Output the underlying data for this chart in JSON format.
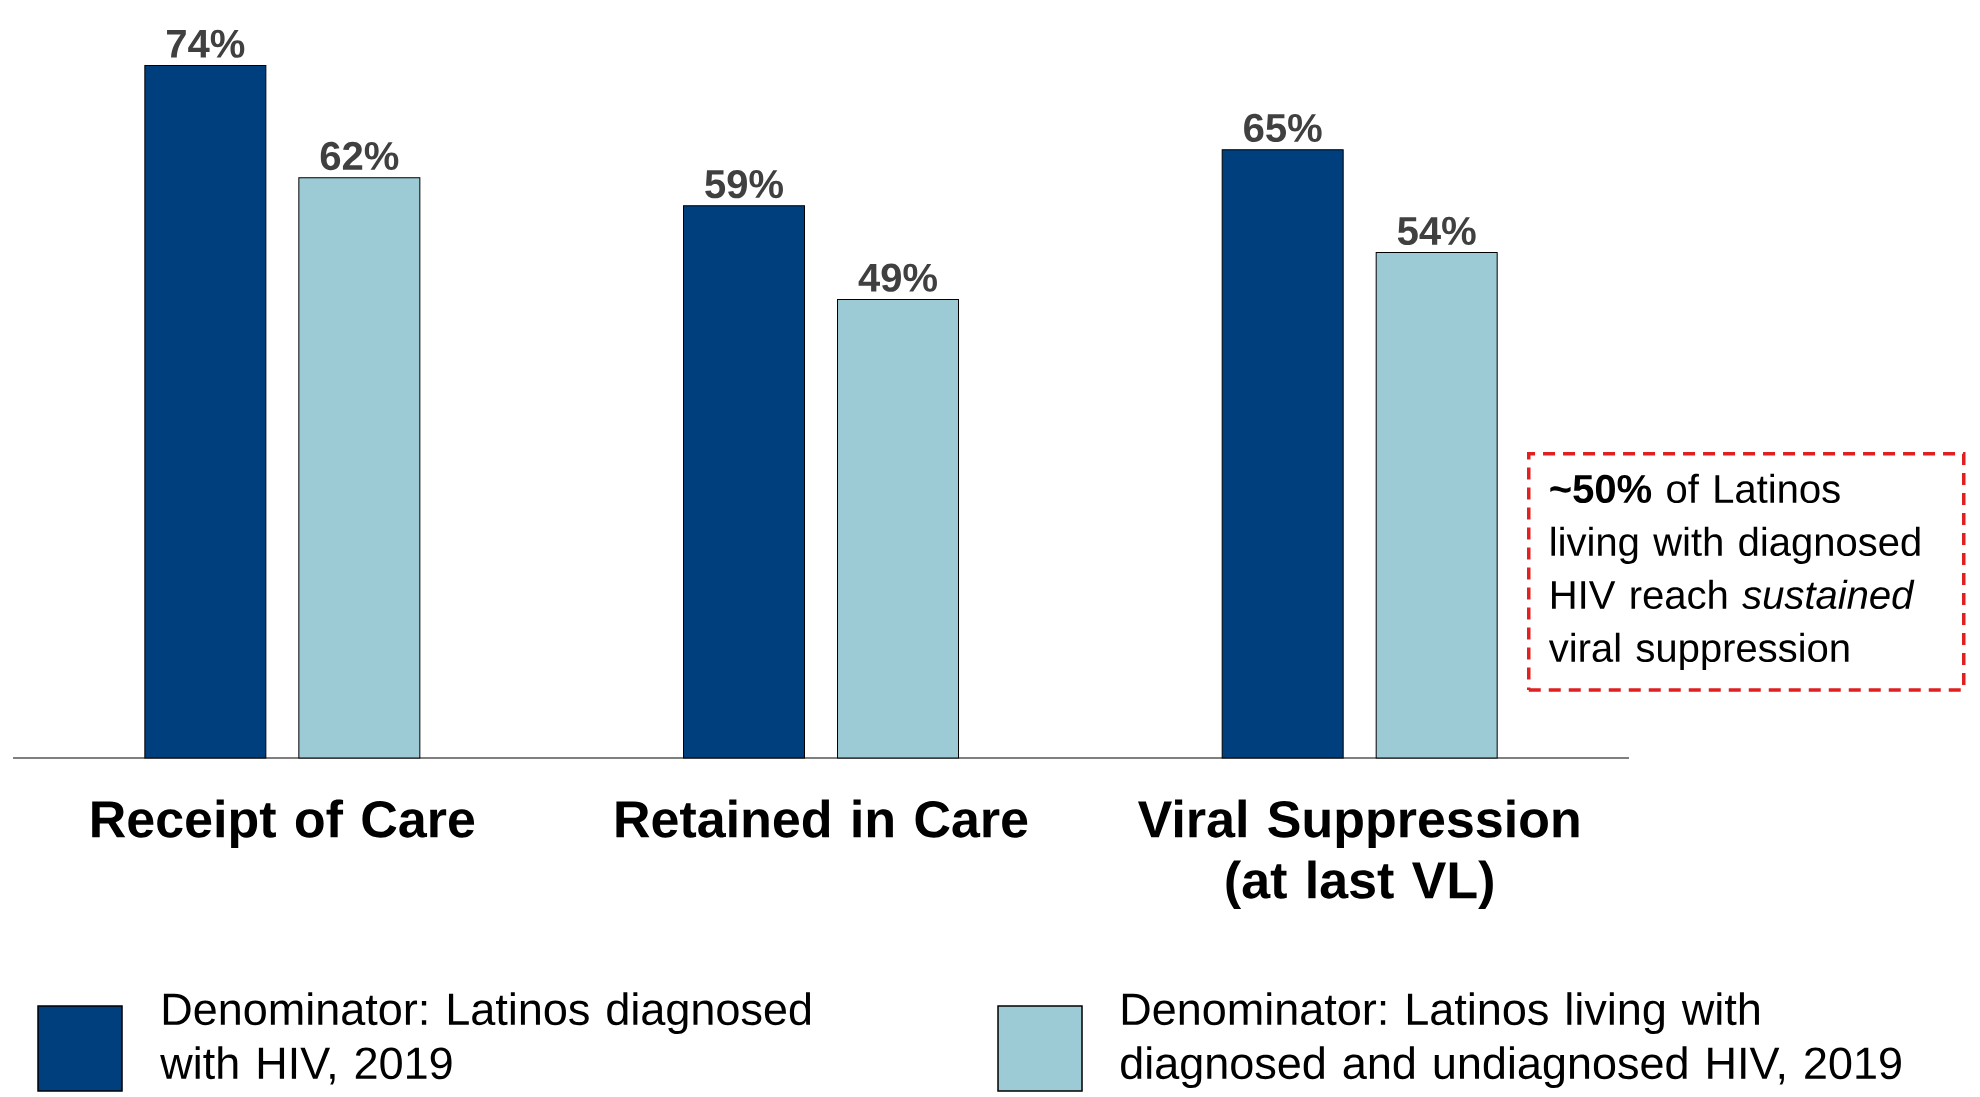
{
  "chart_data": {
    "type": "bar",
    "categories": [
      "Receipt of Care",
      "Retained in Care",
      "Viral Suppression (at last VL)"
    ],
    "series": [
      {
        "name": "Denominator: Latinos diagnosed with HIV, 2019",
        "color": "#003f7d",
        "values": [
          74,
          59,
          65
        ],
        "value_labels": [
          "74%",
          "59%",
          "65%"
        ]
      },
      {
        "name": "Denominator: Latinos living with diagnosed and undiagnosed HIV, 2019",
        "color": "#9ccbd5",
        "values": [
          62,
          49,
          54
        ],
        "value_labels": [
          "62%",
          "49%",
          "54%"
        ]
      }
    ],
    "legend": "bottom",
    "annotations": [
      "**~50%** of Latinos living with diagnosed HIV reach *sustained* viral suppression"
    ]
  }
}
